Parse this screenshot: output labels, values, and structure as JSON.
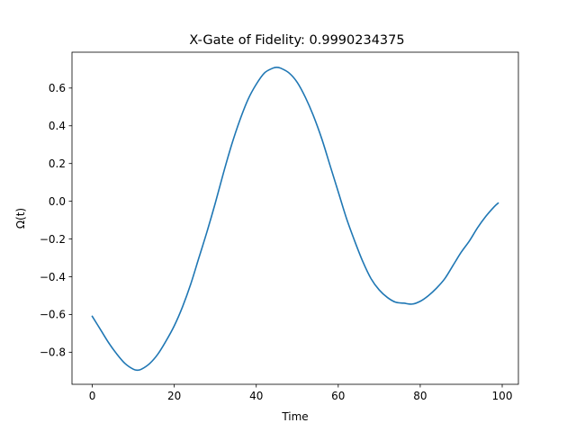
{
  "chart_data": {
    "type": "line",
    "title": "X-Gate of Fidelity: 0.9990234375",
    "xlabel": "Time",
    "ylabel": "Ω(t)",
    "xlim": [
      -4.95,
      103.95
    ],
    "ylim": [
      -0.97,
      0.79
    ],
    "x_ticks": [
      0,
      20,
      40,
      60,
      80,
      100
    ],
    "x_tick_labels": [
      "0",
      "20",
      "40",
      "60",
      "80",
      "100"
    ],
    "y_ticks": [
      -0.8,
      -0.6,
      -0.4,
      -0.2,
      0.0,
      0.2,
      0.4,
      0.6
    ],
    "y_tick_labels": [
      "−0.8",
      "−0.6",
      "−0.4",
      "−0.2",
      "0.0",
      "0.2",
      "0.4",
      "0.6"
    ],
    "grid": false,
    "series": [
      {
        "color": "#1f77b4",
        "x": [
          0,
          2,
          4,
          6,
          8,
          10,
          11,
          12,
          14,
          16,
          18,
          20,
          22,
          24,
          26,
          28,
          30,
          32,
          34,
          36,
          38,
          40,
          42,
          44,
          45,
          46,
          48,
          50,
          52,
          54,
          56,
          58,
          60,
          62,
          64,
          66,
          68,
          70,
          72,
          74,
          76,
          78,
          80,
          82,
          84,
          86,
          88,
          90,
          92,
          94,
          96,
          98,
          99
        ],
        "y": [
          -0.61,
          -0.68,
          -0.75,
          -0.81,
          -0.86,
          -0.89,
          -0.895,
          -0.89,
          -0.86,
          -0.81,
          -0.74,
          -0.66,
          -0.56,
          -0.44,
          -0.3,
          -0.16,
          -0.01,
          0.15,
          0.3,
          0.43,
          0.54,
          0.62,
          0.68,
          0.705,
          0.71,
          0.705,
          0.68,
          0.63,
          0.55,
          0.45,
          0.33,
          0.19,
          0.05,
          -0.09,
          -0.21,
          -0.32,
          -0.41,
          -0.47,
          -0.51,
          -0.535,
          -0.54,
          -0.545,
          -0.53,
          -0.5,
          -0.46,
          -0.41,
          -0.34,
          -0.27,
          -0.21,
          -0.14,
          -0.08,
          -0.03,
          -0.01
        ]
      }
    ]
  }
}
